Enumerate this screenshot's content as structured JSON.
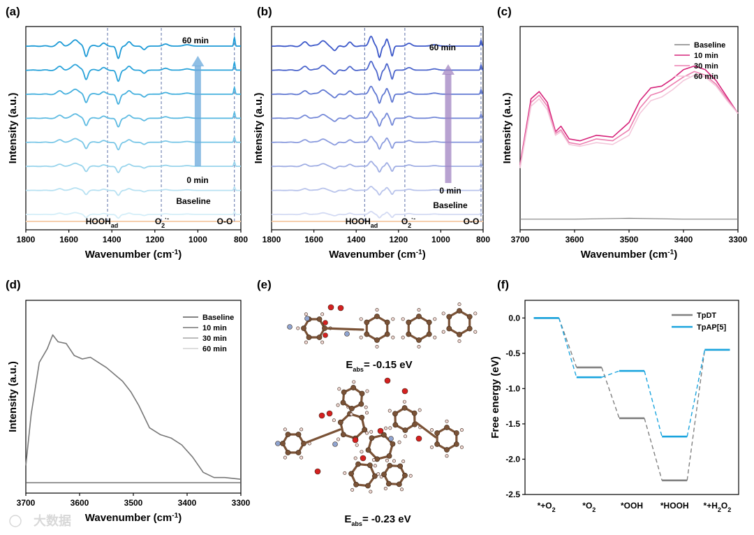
{
  "panels": {
    "a": {
      "label": "(a)",
      "xlabel": "Wavenumber (cm",
      "xlabel_sup": "-1",
      "xlabel_tail": ")",
      "ylabel": "Intensity (a.u.)",
      "top_label": "60 min",
      "bottom_label": "0 min",
      "baseline_label": "Baseline",
      "markers": [
        {
          "main": "HOOH",
          "sub": "ad",
          "sup": ""
        },
        {
          "main": "O",
          "sub": "2",
          "sup": "·-"
        },
        {
          "main": "O-O",
          "sub": "",
          "sup": ""
        }
      ]
    },
    "b": {
      "label": "(b)",
      "xlabel": "Wavenumber (cm",
      "xlabel_sup": "-1",
      "xlabel_tail": ")",
      "ylabel": "Intensity (a.u.)",
      "top_label": "60 min",
      "bottom_label": "0 min",
      "baseline_label": "Baseline",
      "markers": [
        {
          "main": "HOOH",
          "sub": "ad",
          "sup": ""
        },
        {
          "main": "O",
          "sub": "2",
          "sup": "·-"
        },
        {
          "main": "O-O",
          "sub": "",
          "sup": ""
        }
      ]
    },
    "c": {
      "label": "(c)",
      "xlabel": "Wavenumber (cm",
      "xlabel_sup": "-1",
      "xlabel_tail": ")",
      "ylabel": "Intensity (a.u.)"
    },
    "d": {
      "label": "(d)",
      "xlabel": "Wavenumber (cm",
      "xlabel_sup": "-1",
      "xlabel_tail": ")",
      "ylabel": "Intensity (a.u.)"
    },
    "e": {
      "label": "(e)",
      "e1_main": "E",
      "e1_sub": "abs",
      "e1_val": "= -0.15 eV",
      "e2_main": "E",
      "e2_sub": "abs",
      "e2_val": "= -0.23 eV"
    },
    "f": {
      "label": "(f)",
      "ylabel": "Free energy (eV)"
    }
  },
  "watermark": "大数据",
  "colors": {
    "a_series": [
      "#1c9ad6",
      "#2aa3da",
      "#45b0de",
      "#5ebbe2",
      "#7ac7e7",
      "#98d4ec",
      "#b7e1f2",
      "#d4eef8"
    ],
    "b_series": [
      "#3b57c9",
      "#4d66cc",
      "#6078d2",
      "#7589d8",
      "#8a9bde",
      "#a0aee4",
      "#b8c3eb",
      "#d3daf3"
    ],
    "c_series": [
      "#808080",
      "#d6237a",
      "#ec7fb0",
      "#f3c7da"
    ],
    "d_series": [
      "#5a5a5a",
      "#777777",
      "#a6a6a6",
      "#d4d4d4"
    ],
    "f_series": [
      "#808080",
      "#1aa4de"
    ],
    "baseline_strip": "#f6ceac"
  },
  "chart_data": [
    {
      "panel": "a",
      "type": "line",
      "xlabel": "Wavenumber (cm-1)",
      "ylabel": "Intensity (a.u.)",
      "xlim": [
        1800,
        800
      ],
      "xticks": [
        1800,
        1600,
        1400,
        1200,
        1000,
        800
      ],
      "series_count": 8,
      "markers_x": [
        1420,
        1170,
        830
      ]
    },
    {
      "panel": "b",
      "type": "line",
      "xlabel": "Wavenumber (cm-1)",
      "ylabel": "Intensity (a.u.)",
      "xlim": [
        1800,
        800
      ],
      "xticks": [
        1800,
        1600,
        1400,
        1200,
        1000,
        800
      ],
      "series_count": 8,
      "markers_x": [
        1360,
        1170,
        810
      ]
    },
    {
      "panel": "c",
      "type": "line",
      "xlabel": "Wavenumber (cm-1)",
      "ylabel": "Intensity (a.u.)",
      "xlim": [
        3700,
        3300
      ],
      "xticks": [
        3700,
        3600,
        3500,
        3400,
        3300
      ],
      "series": [
        {
          "name": "Baseline",
          "x": [
            3700,
            3600,
            3500,
            3400,
            3300
          ],
          "y": [
            0.02,
            0.02,
            0.025,
            0.02,
            0.02
          ]
        },
        {
          "name": "10 min",
          "x": [
            3700,
            3680,
            3665,
            3650,
            3635,
            3625,
            3610,
            3590,
            3560,
            3530,
            3500,
            3480,
            3460,
            3440,
            3420,
            3400,
            3380,
            3360,
            3340,
            3320,
            3300
          ],
          "y": [
            0.32,
            0.68,
            0.72,
            0.66,
            0.5,
            0.53,
            0.46,
            0.45,
            0.48,
            0.47,
            0.55,
            0.67,
            0.74,
            0.75,
            0.79,
            0.84,
            0.86,
            0.84,
            0.78,
            0.69,
            0.6
          ]
        },
        {
          "name": "30 min",
          "x": [
            3700,
            3680,
            3665,
            3650,
            3635,
            3625,
            3610,
            3590,
            3560,
            3530,
            3500,
            3480,
            3460,
            3440,
            3420,
            3400,
            3380,
            3360,
            3340,
            3320,
            3300
          ],
          "y": [
            0.31,
            0.66,
            0.7,
            0.64,
            0.49,
            0.51,
            0.44,
            0.43,
            0.46,
            0.45,
            0.51,
            0.63,
            0.7,
            0.72,
            0.76,
            0.8,
            0.83,
            0.81,
            0.76,
            0.68,
            0.6
          ]
        },
        {
          "name": "60 min",
          "x": [
            3700,
            3680,
            3665,
            3650,
            3635,
            3625,
            3610,
            3590,
            3560,
            3530,
            3500,
            3480,
            3460,
            3440,
            3420,
            3400,
            3380,
            3360,
            3340,
            3320,
            3300
          ],
          "y": [
            0.3,
            0.64,
            0.68,
            0.62,
            0.48,
            0.5,
            0.43,
            0.42,
            0.44,
            0.43,
            0.48,
            0.6,
            0.67,
            0.69,
            0.73,
            0.78,
            0.81,
            0.8,
            0.75,
            0.67,
            0.6
          ]
        }
      ],
      "legend_position": "top-right"
    },
    {
      "panel": "d",
      "type": "line",
      "xlabel": "Wavenumber (cm-1)",
      "ylabel": "Intensity (a.u.)",
      "xlim": [
        3700,
        3300
      ],
      "xticks": [
        3700,
        3600,
        3500,
        3400,
        3300
      ],
      "series": [
        {
          "name": "Baseline",
          "x": [
            3700,
            3600,
            3500,
            3400,
            3300
          ],
          "y": [
            0.02,
            0.02,
            0.02,
            0.02,
            0.02
          ]
        },
        {
          "name": "10 min",
          "x": [
            3700,
            3690,
            3675,
            3660,
            3650,
            3640,
            3625,
            3610,
            3595,
            3580,
            3565,
            3550,
            3535,
            3520,
            3505,
            3490,
            3470,
            3450,
            3430,
            3410,
            3390,
            3370,
            3350,
            3330,
            3300
          ],
          "y": [
            0.12,
            0.42,
            0.72,
            0.8,
            0.88,
            0.84,
            0.83,
            0.76,
            0.74,
            0.75,
            0.72,
            0.69,
            0.65,
            0.61,
            0.55,
            0.47,
            0.34,
            0.3,
            0.28,
            0.24,
            0.17,
            0.08,
            0.05,
            0.05,
            0.04
          ]
        }
      ],
      "legend_names": [
        "Baseline",
        "10 min",
        "30 min",
        "60 min"
      ],
      "legend_position": "top-right"
    },
    {
      "panel": "f",
      "type": "line",
      "ylabel": "Free energy (eV)",
      "categories": [
        "*+O2",
        "*O2",
        "*OOH",
        "*HOOH",
        "*+H2O2"
      ],
      "ylim": [
        -2.5,
        0.25
      ],
      "yticks": [
        0.0,
        -0.5,
        -1.0,
        -1.5,
        -2.0,
        -2.5
      ],
      "series": [
        {
          "name": "TpDT",
          "values": [
            0.0,
            -0.7,
            -1.42,
            -2.3,
            -0.45
          ]
        },
        {
          "name": "TpAP[5]",
          "values": [
            0.0,
            -0.84,
            -0.75,
            -1.68,
            -0.45
          ]
        }
      ],
      "legend_position": "top-right"
    }
  ]
}
